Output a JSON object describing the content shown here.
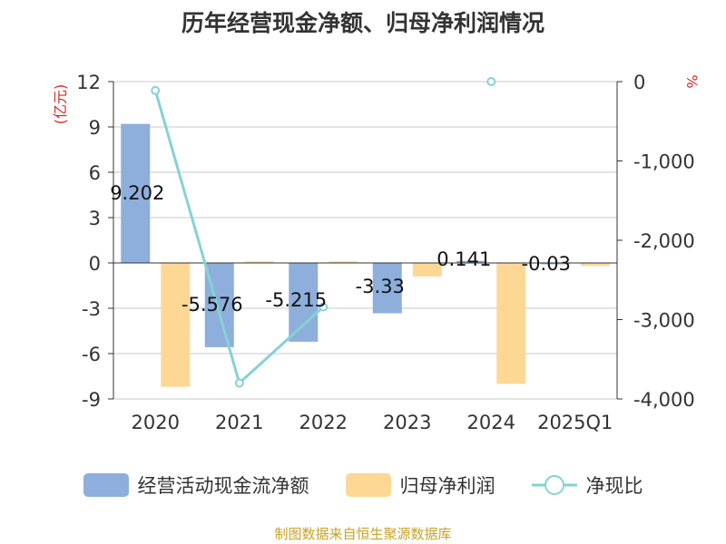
{
  "title": "历年经营现金净额、归母净利润情况",
  "source_note": "制图数据来自恒生聚源数据库",
  "chart_data": {
    "type": "bar",
    "title": "历年经营现金净额、归母净利润情况",
    "categories": [
      "2020",
      "2021",
      "2022",
      "2023",
      "2024",
      "2025Q1"
    ],
    "left_axis": {
      "label": "(亿元)",
      "min": -9,
      "max": 12,
      "ticks": [
        12,
        9,
        6,
        3,
        0,
        -3,
        -6,
        -9
      ]
    },
    "right_axis": {
      "label": "%",
      "min": -4000,
      "max": 0,
      "ticks": [
        0,
        -1000,
        -2000,
        -3000,
        -4000
      ],
      "tick_labels": [
        "0",
        "-1,000",
        "-2,000",
        "-3,000",
        "-4,000"
      ]
    },
    "grid": true,
    "legend_position": "bottom",
    "series": [
      {
        "name": "经营活动现金流净额",
        "kind": "bar",
        "axis": "left",
        "color": "#8eaedb",
        "values": [
          9.202,
          -5.576,
          -5.215,
          -3.33,
          0.141,
          -0.03
        ],
        "labels": [
          "9.202",
          "-5.576",
          "-5.215",
          "-3.33",
          "0.141",
          "-0.03"
        ]
      },
      {
        "name": "归母净利润",
        "kind": "bar",
        "axis": "left",
        "color": "#fdd895",
        "values": [
          -8.2,
          0.1,
          0.1,
          -0.9,
          -8.0,
          -0.2
        ]
      },
      {
        "name": "净现比",
        "kind": "line",
        "axis": "right",
        "color": "#84d2d6",
        "values": [
          -112,
          -3800,
          -2840,
          null,
          0,
          null
        ]
      }
    ]
  }
}
